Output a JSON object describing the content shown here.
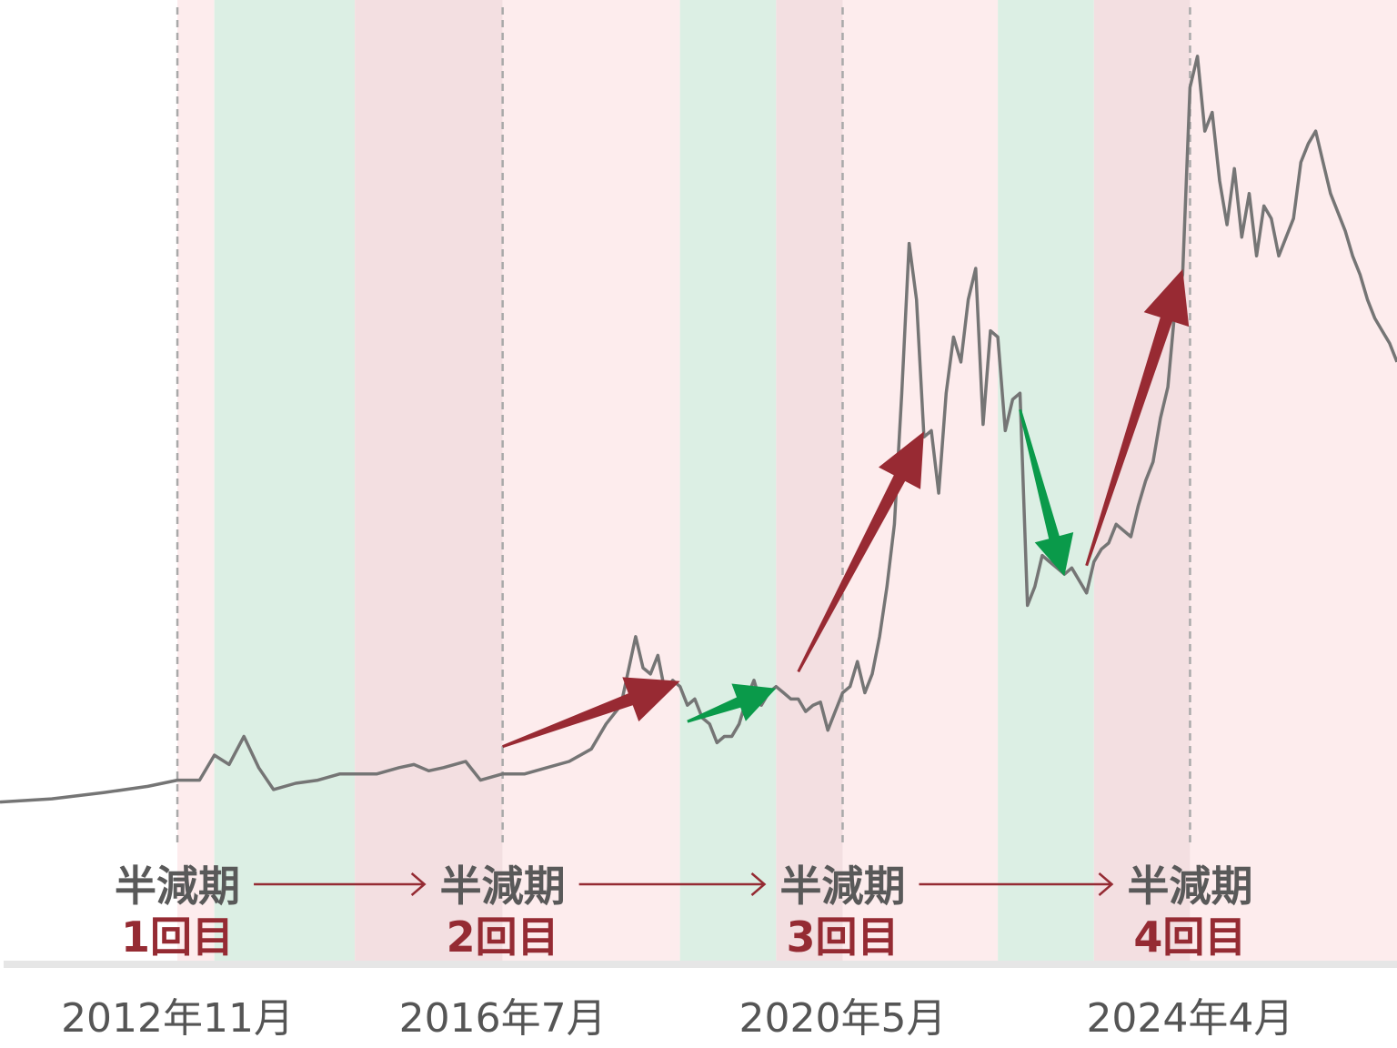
{
  "colors": {
    "band_light_pink": "#fdeced",
    "band_pink": "#f3dfe1",
    "band_green": "#dcefe4",
    "price_line": "#757575",
    "up_arrow": "#982a33",
    "down_arrow": "#0a9a4a",
    "halving_title": "#595959",
    "halving_count": "#952b33",
    "date_text": "#555555",
    "axis": "#e6e6e6",
    "divider": "#a9a9a9"
  },
  "chart_data": {
    "type": "line",
    "title": "",
    "xlabel": "",
    "ylabel": "",
    "xlim": [
      "2010-11",
      "2026-08"
    ],
    "y_axis_shown": false,
    "grid": false,
    "legend": "none",
    "halvings": [
      {
        "date": "2012-11",
        "title": "半減期",
        "count": "1回目",
        "label": "2012年11月"
      },
      {
        "date": "2016-07",
        "title": "半減期",
        "count": "2回目",
        "label": "2016年7月"
      },
      {
        "date": "2020-05",
        "title": "半減期",
        "count": "3回目",
        "label": "2020年5月"
      },
      {
        "date": "2024-04",
        "title": "半減期",
        "count": "4回目",
        "label": "2024年4月"
      }
    ],
    "phase_bands": [
      {
        "start": "2010-11",
        "end": "2012-11",
        "phase": "none"
      },
      {
        "start": "2012-11",
        "end": "2013-04",
        "phase": "post-halving"
      },
      {
        "start": "2013-04",
        "end": "2014-11",
        "phase": "decline"
      },
      {
        "start": "2014-11",
        "end": "2016-07",
        "phase": "pre-halving"
      },
      {
        "start": "2016-07",
        "end": "2018-07",
        "phase": "post-halving"
      },
      {
        "start": "2018-07",
        "end": "2019-08",
        "phase": "decline"
      },
      {
        "start": "2019-08",
        "end": "2020-05",
        "phase": "pre-halving"
      },
      {
        "start": "2020-05",
        "end": "2022-02",
        "phase": "post-halving"
      },
      {
        "start": "2022-02",
        "end": "2023-03",
        "phase": "decline"
      },
      {
        "start": "2023-03",
        "end": "2024-04",
        "phase": "pre-halving"
      },
      {
        "start": "2024-04",
        "end": "2026-08",
        "phase": "post-halving"
      }
    ],
    "trend_arrows": [
      {
        "direction": "up",
        "from": "2016-07",
        "to": "2018-07"
      },
      {
        "direction": "down",
        "from": "2018-08",
        "to": "2019-08"
      },
      {
        "direction": "up",
        "from": "2019-11",
        "to": "2021-04"
      },
      {
        "direction": "down",
        "from": "2022-05",
        "to": "2022-11"
      },
      {
        "direction": "up",
        "from": "2023-02",
        "to": "2024-03"
      }
    ],
    "series": [
      {
        "x": [
          "2010-11",
          "2011-06",
          "2012-01",
          "2012-07",
          "2012-11",
          "2013-02",
          "2013-04",
          "2013-06",
          "2013-08",
          "2013-10",
          "2013-12",
          "2014-03",
          "2014-06",
          "2014-09",
          "2014-11",
          "2015-02",
          "2015-05",
          "2015-07",
          "2015-09",
          "2015-11",
          "2016-02",
          "2016-04",
          "2016-07",
          "2016-10",
          "2017-01",
          "2017-04",
          "2017-07",
          "2017-09",
          "2017-11",
          "2018-01",
          "2018-02",
          "2018-03",
          "2018-04",
          "2018-05",
          "2018-06",
          "2018-07",
          "2018-08",
          "2018-09",
          "2018-10",
          "2018-11",
          "2018-12",
          "2019-01",
          "2019-02",
          "2019-03",
          "2019-04",
          "2019-05",
          "2019-06",
          "2019-07",
          "2019-08",
          "2019-09",
          "2019-10",
          "2019-11",
          "2019-12",
          "2020-01",
          "2020-02",
          "2020-03",
          "2020-04",
          "2020-05",
          "2020-06",
          "2020-07",
          "2020-08",
          "2020-09",
          "2020-10",
          "2020-11",
          "2020-12",
          "2021-01",
          "2021-02",
          "2021-03",
          "2021-04",
          "2021-05",
          "2021-06",
          "2021-07",
          "2021-08",
          "2021-09",
          "2021-10",
          "2021-11",
          "2021-12",
          "2022-01",
          "2022-02",
          "2022-03",
          "2022-04",
          "2022-05",
          "2022-06",
          "2022-07",
          "2022-08",
          "2022-09",
          "2022-10",
          "2022-11",
          "2022-12",
          "2023-01",
          "2023-02",
          "2023-03",
          "2023-04",
          "2023-05",
          "2023-06",
          "2023-07",
          "2023-08",
          "2023-09",
          "2023-10",
          "2023-11",
          "2023-12",
          "2024-01",
          "2024-02",
          "2024-03",
          "2024-04",
          "2024-05",
          "2024-06",
          "2024-07",
          "2024-08",
          "2024-09",
          "2024-10",
          "2024-11",
          "2024-12",
          "2025-01",
          "2025-02",
          "2025-03",
          "2025-04",
          "2025-05",
          "2025-06",
          "2025-07",
          "2025-08",
          "2025-09",
          "2025-10",
          "2025-11",
          "2025-12",
          "2026-01",
          "2026-02",
          "2026-03",
          "2026-04",
          "2026-05",
          "2026-06",
          "2026-07",
          "2026-08"
        ],
        "y": [
          1,
          2,
          4,
          6,
          8,
          8,
          16,
          13,
          22,
          12,
          5,
          7,
          8,
          10,
          10,
          10,
          12,
          13,
          11,
          12,
          14,
          8,
          10,
          10,
          12,
          14,
          18,
          26,
          32,
          54,
          44,
          42,
          48,
          36,
          40,
          38,
          32,
          34,
          28,
          26,
          20,
          22,
          22,
          26,
          34,
          40,
          32,
          36,
          38,
          36,
          34,
          34,
          30,
          32,
          33,
          24,
          30,
          36,
          38,
          46,
          36,
          42,
          54,
          70,
          90,
          132,
          180,
          162,
          118,
          120,
          100,
          132,
          150,
          142,
          162,
          172,
          122,
          152,
          150,
          120,
          130,
          132,
          64,
          70,
          80,
          78,
          76,
          74,
          76,
          72,
          68,
          78,
          82,
          84,
          90,
          88,
          86,
          96,
          104,
          110,
          124,
          134,
          160,
          170,
          230,
          240,
          216,
          222,
          200,
          186,
          204,
          182,
          196,
          176,
          192,
          188,
          176,
          182,
          188,
          206,
          212,
          216,
          206,
          196,
          190,
          184,
          176,
          170,
          162,
          156,
          152,
          148,
          142
        ]
      }
    ]
  }
}
